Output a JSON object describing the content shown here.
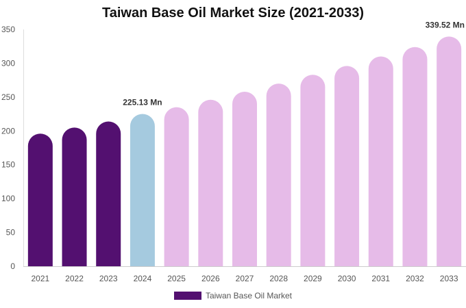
{
  "chart_data": {
    "type": "bar",
    "title": "Taiwan Base Oil Market Size (2021-2033)",
    "xlabel": "",
    "ylabel": "",
    "ylim": [
      0,
      350
    ],
    "yticks": [
      0,
      50,
      100,
      150,
      200,
      250,
      300,
      350
    ],
    "categories": [
      "2021",
      "2022",
      "2023",
      "2024",
      "2025",
      "2026",
      "2027",
      "2028",
      "2029",
      "2030",
      "2031",
      "2032",
      "2033"
    ],
    "series": [
      {
        "name": "Taiwan Base Oil Market",
        "values": [
          196,
          205,
          214,
          225.13,
          235,
          246,
          258,
          270,
          283,
          296,
          310,
          324,
          339.52
        ]
      }
    ],
    "data_labels": [
      {
        "category": "2024",
        "text": "225.13 Mn"
      },
      {
        "category": "2033",
        "text": "339.52 Mn"
      }
    ],
    "bar_colors": {
      "historical": "#531070",
      "base_year": "#a5cadf",
      "forecast": "#e6bbe8"
    },
    "base_year": "2024",
    "legend_color": "#531070",
    "grid": false,
    "legend_position": "bottom-center"
  }
}
